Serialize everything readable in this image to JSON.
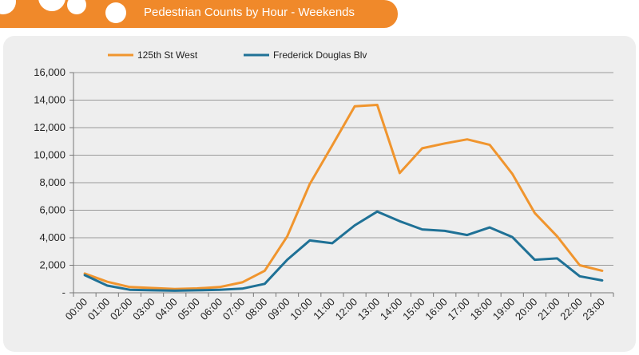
{
  "chart_data": {
    "type": "line",
    "title": "Pedestrian Counts by Hour - Weekends",
    "xlabel": "",
    "ylabel": "",
    "categories": [
      "00:00",
      "01:00",
      "02:00",
      "03:00",
      "04:00",
      "05:00",
      "06:00",
      "07:00",
      "08:00",
      "09:00",
      "10:00",
      "11:00",
      "12:00",
      "13:00",
      "14:00",
      "15:00",
      "16:00",
      "17:00",
      "18:00",
      "19:00",
      "20:00",
      "21:00",
      "22:00",
      "23:00"
    ],
    "ylim": [
      0,
      16000
    ],
    "yticks": [
      0,
      2000,
      4000,
      6000,
      8000,
      10000,
      12000,
      14000,
      16000
    ],
    "ytick_labels": [
      "-",
      "2,000",
      "4,000",
      "6,000",
      "8,000",
      "10,000",
      "12,000",
      "14,000",
      "16,000"
    ],
    "grid": true,
    "legend_position": "top",
    "series": [
      {
        "name": "125th St West",
        "color": "#f0952e",
        "values": [
          1400,
          800,
          420,
          350,
          270,
          320,
          420,
          760,
          1600,
          4100,
          7900,
          10700,
          13550,
          13650,
          8700,
          10500,
          10850,
          11150,
          10750,
          8650,
          5800,
          4100,
          2000,
          1600
        ]
      },
      {
        "name": "Frederick Douglas Blv",
        "color": "#1f7196",
        "values": [
          1280,
          520,
          220,
          180,
          150,
          180,
          220,
          300,
          650,
          2400,
          3800,
          3600,
          4900,
          5900,
          5200,
          4600,
          4500,
          4200,
          4750,
          4050,
          2400,
          2500,
          1200,
          900
        ]
      }
    ]
  },
  "colors": {
    "header": "#f0892a",
    "panel": "#eeeeee",
    "grid": "#999999"
  }
}
